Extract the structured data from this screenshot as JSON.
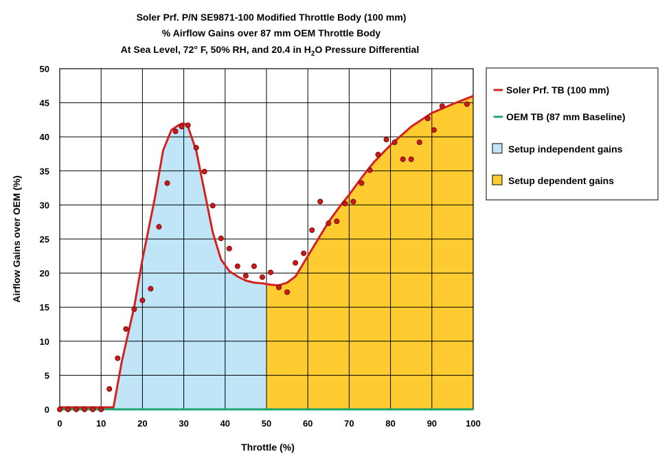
{
  "chart_data": {
    "type": "line",
    "title": [
      "Soler Prf. P/N SE9871-100 Modified Throttle Body (100 mm)",
      "% Airflow Gains over 87 mm OEM Throttle Body"
    ],
    "subtitle": {
      "pre": "At Sea Level, 72° F, 50% RH, and 20.4 in H",
      "sub": "2",
      "post": "O Pressure Differential"
    },
    "xlabel": "Throttle (%)",
    "ylabel": "Airflow Gains over OEM (%)",
    "xlim": [
      0,
      100
    ],
    "ylim": [
      0,
      50
    ],
    "xticks": [
      0,
      10,
      20,
      30,
      40,
      50,
      60,
      70,
      80,
      90,
      100
    ],
    "yticks": [
      0,
      5,
      10,
      15,
      20,
      25,
      30,
      35,
      40,
      45,
      50
    ],
    "grid": true,
    "legend_position": "right",
    "regions": [
      {
        "name": "Setup independent gains",
        "x_range": [
          0,
          50
        ],
        "color": "#bfe5f7"
      },
      {
        "name": "Setup dependent gains",
        "x_range": [
          50,
          100
        ],
        "color": "#fecb30"
      }
    ],
    "series": [
      {
        "name": "Soler Prf. TB (100 mm)",
        "kind": "fit-curve",
        "color": "#d52020",
        "x": [
          0,
          13,
          15,
          18,
          20,
          23,
          25,
          27,
          29,
          30,
          31,
          33,
          35,
          37,
          39,
          41,
          43,
          45,
          47,
          49,
          51,
          53,
          55,
          57,
          58,
          60,
          63,
          65,
          68,
          70,
          73,
          76,
          80,
          85,
          90,
          95,
          100
        ],
        "values": [
          0.3,
          0.3,
          7,
          15,
          22,
          31,
          38,
          41,
          41.8,
          42,
          41.5,
          38,
          32,
          26,
          22,
          20.3,
          19.5,
          18.9,
          18.6,
          18.5,
          18.3,
          18.2,
          18.6,
          19.5,
          20.5,
          22.5,
          25.5,
          27.5,
          30,
          31.5,
          34,
          36.3,
          38.8,
          41.5,
          43.5,
          44.8,
          46
        ]
      },
      {
        "name": "OEM TB (87 mm Baseline)",
        "kind": "baseline",
        "color": "#1aa56a",
        "x": [
          0,
          100
        ],
        "values": [
          0,
          0
        ]
      },
      {
        "name": "Measured points",
        "kind": "scatter",
        "color": "#cc1a1a",
        "x": [
          0,
          2,
          4,
          6,
          8,
          10,
          12,
          14,
          16,
          18,
          20,
          22,
          24,
          26,
          28,
          29.5,
          31,
          33,
          35,
          37,
          39,
          41,
          43,
          45,
          47,
          49,
          51,
          53,
          55,
          57,
          59,
          61,
          63,
          65,
          67,
          69,
          71,
          73,
          75,
          77,
          79,
          81,
          83,
          85,
          87,
          89,
          90.5,
          92.5,
          98.5
        ],
        "values": [
          0,
          0,
          0,
          0,
          0,
          0,
          3,
          7.5,
          11.8,
          14.7,
          16,
          17.7,
          26.8,
          33.2,
          40.8,
          41.5,
          41.7,
          38.4,
          34.9,
          29.9,
          25.1,
          23.6,
          21,
          19.6,
          21,
          19.4,
          20.1,
          17.9,
          17.2,
          21.5,
          22.9,
          26.3,
          30.5,
          27.3,
          27.6,
          30.2,
          30.5,
          33.2,
          35.1,
          37.4,
          39.6,
          39.2,
          36.7,
          36.7,
          39.2,
          42.7,
          41,
          44.5,
          44.8
        ]
      }
    ]
  },
  "legend": {
    "items": [
      {
        "label": "Soler Prf. TB (100 mm)",
        "type": "line",
        "color": "#d52020"
      },
      {
        "label": "OEM TB (87 mm Baseline)",
        "type": "line",
        "color": "#1aa56a"
      },
      {
        "label": "Setup independent gains",
        "type": "box",
        "color": "#bfe5f7"
      },
      {
        "label": "Setup dependent gains",
        "type": "box",
        "color": "#fecb30"
      }
    ]
  }
}
